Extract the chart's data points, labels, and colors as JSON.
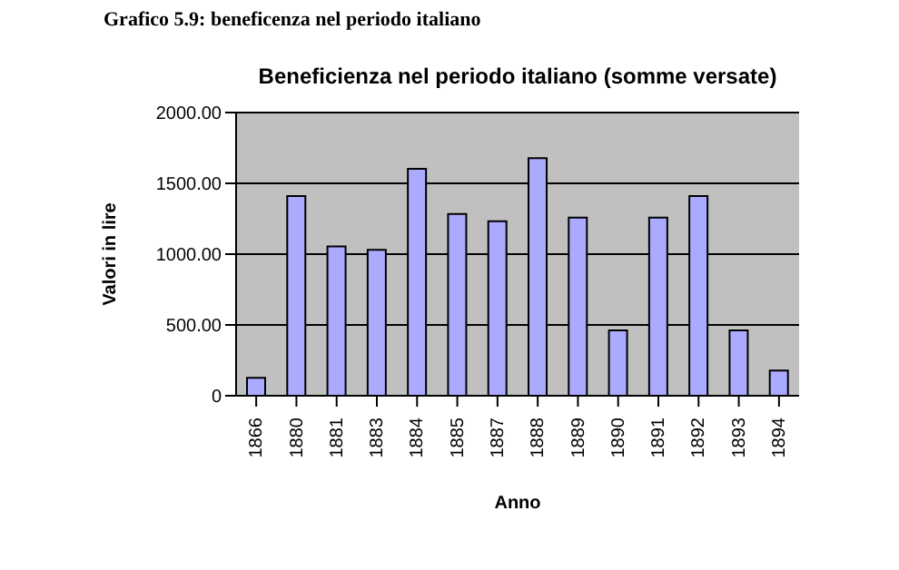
{
  "chart_data": {
    "type": "bar",
    "title": "Beneficienza nel periodo italiano (somme versate)",
    "annotations": [
      "Grafico 5.9: beneficenza nel periodo italiano"
    ],
    "xlabel": "Anno",
    "ylabel": "Valori in lire",
    "categories": [
      "1866",
      "1880",
      "1881",
      "1883",
      "1884",
      "1885",
      "1887",
      "1888",
      "1889",
      "1890",
      "1891",
      "1892",
      "1893",
      "1894"
    ],
    "values": [
      127,
      1411,
      1055,
      1030,
      1602,
      1284,
      1233,
      1678,
      1258,
      462,
      1258,
      1411,
      462,
      178
    ],
    "color": "#aaaaff",
    "ylim": [
      0,
      2000
    ],
    "yticks": [
      0,
      {
        "value": 500,
        "label": "500.00"
      },
      {
        "value": 1000,
        "label": "1000.00"
      },
      {
        "value": 1500,
        "label": "1500.00"
      },
      {
        "value": 2000,
        "label": "2000.00"
      }
    ],
    "grid": "y"
  }
}
